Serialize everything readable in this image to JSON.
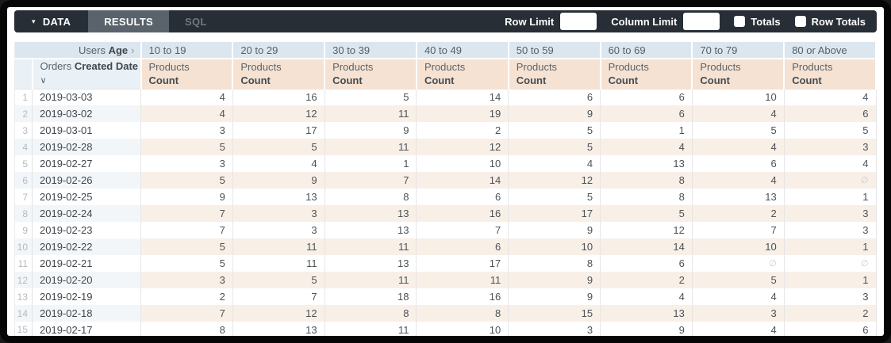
{
  "icons": {
    "caret_down": "▾",
    "chevron_right": "›",
    "sort_desc_chevron": "∨",
    "null_symbol": "∅",
    "totals_checkbox": "unchecked",
    "row_totals_checkbox": "unchecked"
  },
  "colors": {
    "toolbar_bg": "#272e35",
    "active_tab_bg": "#5a626b",
    "pivot_header_bg": "#dbe6ef",
    "dimension_header_bg": "#e9f0f6",
    "measure_header_bg": "#f6e2d2",
    "even_row_dimension_bg": "#f3f6f9",
    "even_row_measure_bg": "#f8efe7"
  },
  "toolbar": {
    "data_tab": "DATA",
    "results_tab": "RESULTS",
    "sql_tab": "SQL",
    "row_limit_label": "Row Limit",
    "row_limit_value": "",
    "column_limit_label": "Column Limit",
    "column_limit_value": "",
    "totals_label": "Totals",
    "totals_checked": false,
    "row_totals_label": "Row Totals",
    "row_totals_checked": false
  },
  "table": {
    "pivot_dimension": {
      "prefix": "Users",
      "name": "Age"
    },
    "pivot_values": [
      "10 to 19",
      "20 to 29",
      "30 to 39",
      "40 to 49",
      "50 to 59",
      "60 to 69",
      "70 to 79",
      "80 or Above"
    ],
    "row_dimension": {
      "prefix": "Orders",
      "name": "Created Date"
    },
    "measure": {
      "prefix": "Products",
      "name": "Count"
    },
    "rows": [
      {
        "n": 1,
        "date": "2019-03-03",
        "values": [
          4,
          16,
          5,
          14,
          6,
          6,
          10,
          4
        ]
      },
      {
        "n": 2,
        "date": "2019-03-02",
        "values": [
          4,
          12,
          11,
          19,
          9,
          6,
          4,
          6
        ]
      },
      {
        "n": 3,
        "date": "2019-03-01",
        "values": [
          3,
          17,
          9,
          2,
          5,
          1,
          5,
          5
        ]
      },
      {
        "n": 4,
        "date": "2019-02-28",
        "values": [
          5,
          5,
          11,
          12,
          5,
          4,
          4,
          3
        ]
      },
      {
        "n": 5,
        "date": "2019-02-27",
        "values": [
          3,
          4,
          1,
          10,
          4,
          13,
          6,
          4
        ]
      },
      {
        "n": 6,
        "date": "2019-02-26",
        "values": [
          5,
          9,
          7,
          14,
          12,
          8,
          4,
          null
        ]
      },
      {
        "n": 7,
        "date": "2019-02-25",
        "values": [
          9,
          13,
          8,
          6,
          5,
          8,
          13,
          1
        ]
      },
      {
        "n": 8,
        "date": "2019-02-24",
        "values": [
          7,
          3,
          13,
          16,
          17,
          5,
          2,
          3
        ]
      },
      {
        "n": 9,
        "date": "2019-02-23",
        "values": [
          7,
          3,
          13,
          7,
          9,
          12,
          7,
          3
        ]
      },
      {
        "n": 10,
        "date": "2019-02-22",
        "values": [
          5,
          11,
          11,
          6,
          10,
          14,
          10,
          1
        ]
      },
      {
        "n": 11,
        "date": "2019-02-21",
        "values": [
          5,
          11,
          13,
          17,
          8,
          6,
          null,
          null
        ]
      },
      {
        "n": 12,
        "date": "2019-02-20",
        "values": [
          3,
          5,
          11,
          11,
          9,
          2,
          5,
          1
        ]
      },
      {
        "n": 13,
        "date": "2019-02-19",
        "values": [
          2,
          7,
          18,
          16,
          9,
          4,
          4,
          3
        ]
      },
      {
        "n": 14,
        "date": "2019-02-18",
        "values": [
          7,
          12,
          8,
          8,
          15,
          13,
          3,
          2
        ]
      },
      {
        "n": 15,
        "date": "2019-02-17",
        "values": [
          8,
          13,
          11,
          10,
          3,
          9,
          4,
          6
        ]
      }
    ]
  }
}
